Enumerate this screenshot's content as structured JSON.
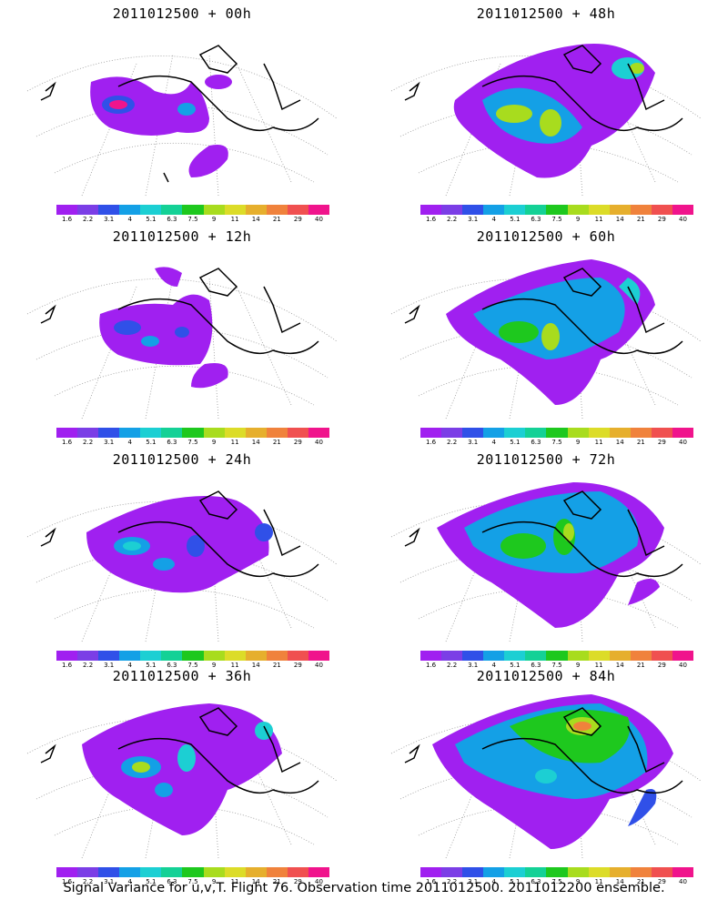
{
  "colorbar": {
    "labels": [
      "1.6",
      "2.2",
      "3.1",
      "4",
      "5.1",
      "6.3",
      "7.5",
      "9",
      "11",
      "14",
      "21",
      "29",
      "40"
    ],
    "colors": [
      "#a020f0",
      "#7b3ee6",
      "#3050e8",
      "#14a0e6",
      "#1ccfd3",
      "#14d196",
      "#1ec81e",
      "#a8dc1e",
      "#dcdc28",
      "#e6af2d",
      "#f0823c",
      "#f05050",
      "#f0148c"
    ]
  },
  "map_colors": {
    "background_shade": "#a020f0"
  },
  "panels": [
    {
      "title": "2011012500 + 00h"
    },
    {
      "title": "2011012500 + 48h"
    },
    {
      "title": "2011012500 + 12h"
    },
    {
      "title": "2011012500 + 60h"
    },
    {
      "title": "2011012500 + 24h"
    },
    {
      "title": "2011012500 + 72h"
    },
    {
      "title": "2011012500 + 36h"
    },
    {
      "title": "2011012500 + 84h"
    }
  ],
  "footer": {
    "caption": "Signal Variance for u,v,T. Flight 76. Observation time 2011012500. 2011012200 ensemble."
  }
}
